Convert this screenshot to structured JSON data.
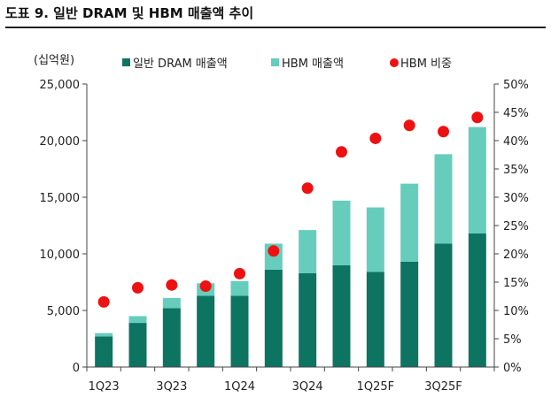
{
  "figure_title": "도표 9. 일반 DRAM 및 HBM 매출액 추이",
  "chart_data": {
    "type": "bar",
    "stacked": true,
    "y_unit_label": "(십억원)",
    "categories": [
      "1Q23",
      "2Q23",
      "3Q23",
      "4Q23",
      "1Q24",
      "2Q24",
      "3Q24",
      "4Q24",
      "1Q25F",
      "2Q25F",
      "3Q25F",
      "4Q25F"
    ],
    "x_tick_labels": [
      "1Q23",
      "",
      "3Q23",
      "",
      "1Q24",
      "",
      "3Q24",
      "",
      "1Q25F",
      "",
      "3Q25F",
      ""
    ],
    "series": [
      {
        "name": "일반 DRAM 매출액",
        "axis": "left",
        "color": "#0d7462",
        "values": [
          2700,
          3900,
          5200,
          6300,
          6300,
          8600,
          8300,
          9000,
          8400,
          9300,
          10900,
          11800
        ]
      },
      {
        "name": "HBM 매출액",
        "axis": "left",
        "color": "#66cdbd",
        "values": [
          300,
          600,
          900,
          1100,
          1300,
          2300,
          3800,
          5700,
          5700,
          6900,
          7900,
          9400
        ]
      },
      {
        "name": "HBM 비중",
        "axis": "right",
        "type": "scatter",
        "color": "#ee1111",
        "values": [
          11.5,
          14.0,
          14.5,
          14.3,
          16.5,
          20.5,
          31.6,
          38.0,
          40.4,
          42.7,
          41.6,
          44.1
        ]
      }
    ],
    "y_left": {
      "min": 0,
      "max": 25000,
      "ticks": [
        "0",
        "5,000",
        "10,000",
        "15,000",
        "20,000",
        "25,000"
      ]
    },
    "y_right": {
      "min": 0,
      "max": 50,
      "ticks": [
        "0%",
        "5%",
        "10%",
        "15%",
        "20%",
        "25%",
        "30%",
        "35%",
        "40%",
        "45%",
        "50%"
      ]
    },
    "legend_position": "top",
    "grid": false
  }
}
